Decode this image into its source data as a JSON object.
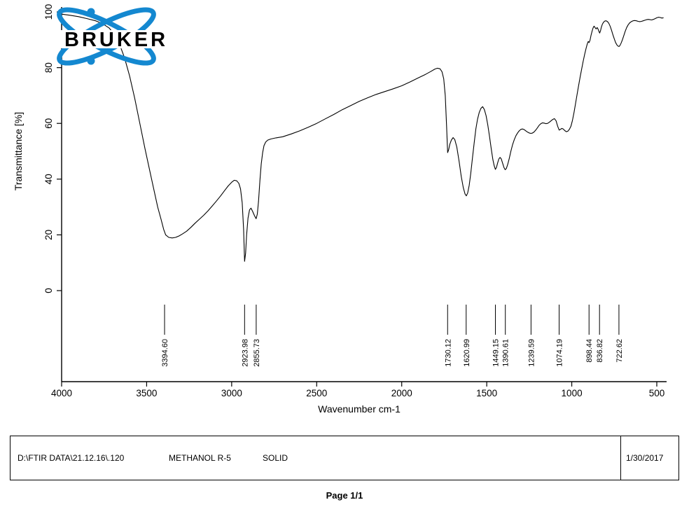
{
  "logo": {
    "text": "BRUKER",
    "color": "#1488d0"
  },
  "chart_data": {
    "type": "line",
    "title": "",
    "xlabel": "Wavenumber cm-1",
    "ylabel": "Transmittance [%]",
    "x_ticks": [
      4000,
      3500,
      3000,
      2500,
      2000,
      1500,
      1000,
      500
    ],
    "y_ticks": [
      0,
      20,
      40,
      60,
      80,
      100
    ],
    "x_range": [
      4000,
      450
    ],
    "y_range": [
      0,
      100
    ],
    "x_axis_reversed": true,
    "grid": false,
    "line_color": "#000000",
    "peak_labels": [
      "3394.60",
      "2923.98",
      "2855.73",
      "1730.12",
      "1620.99",
      "1449.15",
      "1390.61",
      "1239.59",
      "1074.19",
      "898.44",
      "836.82",
      "722.62"
    ],
    "points": [
      [
        4000,
        99.2
      ],
      [
        3950,
        98.8
      ],
      [
        3900,
        98.3
      ],
      [
        3850,
        97.6
      ],
      [
        3800,
        96.8
      ],
      [
        3760,
        95.8
      ],
      [
        3720,
        94.2
      ],
      [
        3690,
        92
      ],
      [
        3660,
        88.5
      ],
      [
        3630,
        83.5
      ],
      [
        3600,
        77
      ],
      [
        3570,
        69
      ],
      [
        3540,
        60
      ],
      [
        3510,
        51
      ],
      [
        3480,
        42.5
      ],
      [
        3455,
        35.5
      ],
      [
        3435,
        30
      ],
      [
        3415,
        25.5
      ],
      [
        3400,
        22
      ],
      [
        3388,
        20
      ],
      [
        3370,
        19.1
      ],
      [
        3350,
        18.9
      ],
      [
        3330,
        19.1
      ],
      [
        3310,
        19.6
      ],
      [
        3290,
        20.3
      ],
      [
        3265,
        21.3
      ],
      [
        3240,
        22.7
      ],
      [
        3215,
        24.2
      ],
      [
        3190,
        25.6
      ],
      [
        3165,
        27
      ],
      [
        3140,
        28.6
      ],
      [
        3115,
        30.3
      ],
      [
        3090,
        32.1
      ],
      [
        3065,
        34
      ],
      [
        3040,
        36
      ],
      [
        3020,
        37.6
      ],
      [
        3000,
        38.9
      ],
      [
        2985,
        39.6
      ],
      [
        2970,
        39.4
      ],
      [
        2958,
        38.5
      ],
      [
        2948,
        36.5
      ],
      [
        2938,
        31.5
      ],
      [
        2930,
        22
      ],
      [
        2924,
        10.5
      ],
      [
        2918,
        13.5
      ],
      [
        2912,
        20
      ],
      [
        2904,
        26
      ],
      [
        2895,
        29
      ],
      [
        2886,
        29.6
      ],
      [
        2876,
        28.3
      ],
      [
        2866,
        26.9
      ],
      [
        2856,
        25.8
      ],
      [
        2849,
        27.5
      ],
      [
        2842,
        32
      ],
      [
        2834,
        39.5
      ],
      [
        2826,
        45.5
      ],
      [
        2818,
        49.5
      ],
      [
        2810,
        52
      ],
      [
        2800,
        53.3
      ],
      [
        2788,
        54
      ],
      [
        2770,
        54.4
      ],
      [
        2740,
        54.8
      ],
      [
        2700,
        55.2
      ],
      [
        2650,
        56.2
      ],
      [
        2600,
        57.3
      ],
      [
        2550,
        58.6
      ],
      [
        2500,
        60
      ],
      [
        2450,
        61.6
      ],
      [
        2400,
        63.2
      ],
      [
        2350,
        64.9
      ],
      [
        2300,
        66.4
      ],
      [
        2250,
        67.9
      ],
      [
        2200,
        69.2
      ],
      [
        2150,
        70.4
      ],
      [
        2100,
        71.4
      ],
      [
        2050,
        72.4
      ],
      [
        2000,
        73.5
      ],
      [
        1950,
        74.9
      ],
      [
        1900,
        76.4
      ],
      [
        1860,
        77.6
      ],
      [
        1830,
        78.6
      ],
      [
        1805,
        79.5
      ],
      [
        1790,
        79.8
      ],
      [
        1775,
        79.6
      ],
      [
        1763,
        78.5
      ],
      [
        1753,
        76
      ],
      [
        1744,
        70
      ],
      [
        1736,
        59
      ],
      [
        1730,
        49.5
      ],
      [
        1724,
        50.5
      ],
      [
        1717,
        52.5
      ],
      [
        1708,
        54
      ],
      [
        1698,
        54.9
      ],
      [
        1688,
        54.2
      ],
      [
        1676,
        51.5
      ],
      [
        1663,
        46.5
      ],
      [
        1650,
        41
      ],
      [
        1638,
        37
      ],
      [
        1628,
        34.7
      ],
      [
        1620,
        34
      ],
      [
        1612,
        35
      ],
      [
        1603,
        37.8
      ],
      [
        1594,
        42
      ],
      [
        1584,
        47.5
      ],
      [
        1574,
        53
      ],
      [
        1564,
        58
      ],
      [
        1554,
        61.5
      ],
      [
        1544,
        64
      ],
      [
        1534,
        65.4
      ],
      [
        1524,
        66
      ],
      [
        1514,
        65
      ],
      [
        1504,
        62.8
      ],
      [
        1494,
        59.5
      ],
      [
        1484,
        55.5
      ],
      [
        1474,
        51
      ],
      [
        1464,
        47
      ],
      [
        1456,
        44.8
      ],
      [
        1449,
        43.5
      ],
      [
        1443,
        44.2
      ],
      [
        1436,
        45.8
      ],
      [
        1429,
        47.2
      ],
      [
        1422,
        47.8
      ],
      [
        1415,
        47.3
      ],
      [
        1407,
        45.8
      ],
      [
        1399,
        44.2
      ],
      [
        1392,
        43.4
      ],
      [
        1385,
        43.8
      ],
      [
        1377,
        45.2
      ],
      [
        1368,
        47.3
      ],
      [
        1358,
        50
      ],
      [
        1348,
        52.4
      ],
      [
        1338,
        54.2
      ],
      [
        1328,
        55.6
      ],
      [
        1318,
        56.6
      ],
      [
        1308,
        57.4
      ],
      [
        1298,
        57.9
      ],
      [
        1288,
        58
      ],
      [
        1278,
        57.7
      ],
      [
        1268,
        57.2
      ],
      [
        1258,
        56.8
      ],
      [
        1248,
        56.5
      ],
      [
        1240,
        56.4
      ],
      [
        1232,
        56.5
      ],
      [
        1222,
        56.9
      ],
      [
        1212,
        57.6
      ],
      [
        1202,
        58.4
      ],
      [
        1192,
        59.3
      ],
      [
        1182,
        59.9
      ],
      [
        1172,
        60.2
      ],
      [
        1162,
        60.1
      ],
      [
        1152,
        59.9
      ],
      [
        1142,
        60
      ],
      [
        1132,
        60.4
      ],
      [
        1122,
        60.9
      ],
      [
        1112,
        61.4
      ],
      [
        1102,
        61.7
      ],
      [
        1092,
        60.9
      ],
      [
        1083,
        59
      ],
      [
        1074,
        57.6
      ],
      [
        1066,
        57.9
      ],
      [
        1058,
        58.2
      ],
      [
        1050,
        58
      ],
      [
        1041,
        57.4
      ],
      [
        1032,
        57
      ],
      [
        1023,
        57.2
      ],
      [
        1014,
        57.9
      ],
      [
        1005,
        59
      ],
      [
        996,
        61
      ],
      [
        987,
        63.8
      ],
      [
        978,
        67
      ],
      [
        969,
        70.3
      ],
      [
        960,
        73.5
      ],
      [
        951,
        76.6
      ],
      [
        942,
        79.5
      ],
      [
        933,
        82.2
      ],
      [
        924,
        84.8
      ],
      [
        916,
        86.9
      ],
      [
        909,
        88.5
      ],
      [
        903,
        89.4
      ],
      [
        898,
        89
      ],
      [
        893,
        89.8
      ],
      [
        887,
        91.5
      ],
      [
        881,
        93
      ],
      [
        875,
        94.2
      ],
      [
        869,
        94.9
      ],
      [
        863,
        94.4
      ],
      [
        857,
        93.9
      ],
      [
        851,
        94.4
      ],
      [
        845,
        93.8
      ],
      [
        840,
        93
      ],
      [
        836,
        92.4
      ],
      [
        831,
        93.2
      ],
      [
        826,
        94.5
      ],
      [
        820,
        95.6
      ],
      [
        813,
        96.3
      ],
      [
        806,
        96.7
      ],
      [
        798,
        96.8
      ],
      [
        790,
        96.5
      ],
      [
        782,
        95.9
      ],
      [
        774,
        94.8
      ],
      [
        766,
        93.4
      ],
      [
        758,
        91.8
      ],
      [
        750,
        90.3
      ],
      [
        742,
        89
      ],
      [
        734,
        88.1
      ],
      [
        727,
        87.7
      ],
      [
        722,
        87.6
      ],
      [
        716,
        88
      ],
      [
        709,
        88.9
      ],
      [
        702,
        90
      ],
      [
        694,
        91.5
      ],
      [
        686,
        93
      ],
      [
        677,
        94.4
      ],
      [
        668,
        95.4
      ],
      [
        659,
        96.1
      ],
      [
        650,
        96.5
      ],
      [
        640,
        96.8
      ],
      [
        630,
        96.9
      ],
      [
        620,
        96.8
      ],
      [
        610,
        96.6
      ],
      [
        600,
        96.5
      ],
      [
        590,
        96.6
      ],
      [
        580,
        96.8
      ],
      [
        570,
        97
      ],
      [
        560,
        97.2
      ],
      [
        550,
        97.3
      ],
      [
        540,
        97.2
      ],
      [
        530,
        97.1
      ],
      [
        520,
        97.3
      ],
      [
        510,
        97.6
      ],
      [
        500,
        97.9
      ],
      [
        490,
        98.1
      ],
      [
        480,
        98
      ],
      [
        470,
        97.8
      ],
      [
        462,
        97.9
      ]
    ]
  },
  "footer": {
    "file_path": "D:\\FTIR DATA\\21.12.16\\.120",
    "sample_name": "METHANOL R-5",
    "sample_form": "SOLID",
    "date": "1/30/2017",
    "page": "Page 1/1"
  }
}
